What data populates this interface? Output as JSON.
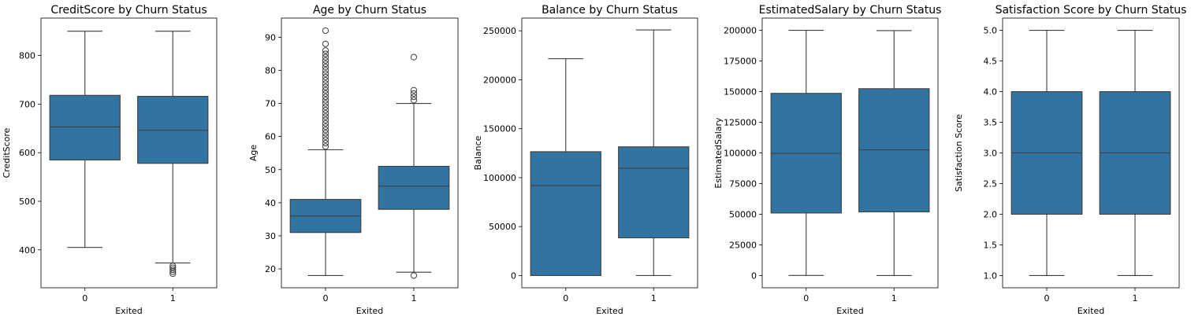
{
  "figure": {
    "background": "#ffffff",
    "box_color": "#3274a1",
    "line_color": "#3f3f3f"
  },
  "chart_data": [
    {
      "type": "box",
      "title": "CreditScore by Churn Status",
      "xlabel": "Exited",
      "ylabel": "CreditScore",
      "categories": [
        "0",
        "1"
      ],
      "ylim": [
        322,
        877
      ],
      "yticks": [
        400,
        500,
        600,
        700,
        800
      ],
      "ytick_labels": [
        "400",
        "500",
        "600",
        "700",
        "800"
      ],
      "boxes": [
        {
          "category": "0",
          "whisker_low": 405,
          "q1": 585,
          "median": 653,
          "q3": 718,
          "whisker_high": 850,
          "outliers": []
        },
        {
          "category": "1",
          "whisker_low": 373,
          "q1": 578,
          "median": 646,
          "q3": 716,
          "whisker_high": 850,
          "outliers": [
            367,
            363,
            359,
            355,
            351
          ]
        }
      ]
    },
    {
      "type": "box",
      "title": "Age by Churn Status",
      "xlabel": "Exited",
      "ylabel": "Age",
      "categories": [
        "0",
        "1"
      ],
      "ylim": [
        14.3,
        95.8
      ],
      "yticks": [
        20,
        30,
        40,
        50,
        60,
        70,
        80,
        90
      ],
      "ytick_labels": [
        "20",
        "30",
        "40",
        "50",
        "60",
        "70",
        "80",
        "90"
      ],
      "boxes": [
        {
          "category": "0",
          "whisker_low": 18,
          "q1": 31,
          "median": 36,
          "q3": 41,
          "whisker_high": 56,
          "outliers": [
            57,
            58,
            59,
            60,
            61,
            62,
            63,
            64,
            65,
            66,
            67,
            68,
            69,
            70,
            71,
            72,
            73,
            74,
            75,
            76,
            77,
            78,
            79,
            80,
            81,
            82,
            83,
            84,
            85,
            86,
            88,
            92
          ]
        },
        {
          "category": "1",
          "whisker_low": 19,
          "q1": 38,
          "median": 45,
          "q3": 51,
          "whisker_high": 70,
          "outliers": [
            18,
            71,
            72,
            73,
            74,
            84
          ]
        }
      ]
    },
    {
      "type": "box",
      "title": "Balance by Churn Status",
      "xlabel": "Exited",
      "ylabel": "Balance",
      "categories": [
        "0",
        "1"
      ],
      "ylim": [
        -12500,
        263000
      ],
      "yticks": [
        0,
        50000,
        100000,
        150000,
        200000,
        250000
      ],
      "ytick_labels": [
        "0",
        "50000",
        "100000",
        "150000",
        "200000",
        "250000"
      ],
      "boxes": [
        {
          "category": "0",
          "whisker_low": 0,
          "q1": 0,
          "median": 92000,
          "q3": 126500,
          "whisker_high": 221500,
          "outliers": []
        },
        {
          "category": "1",
          "whisker_low": 0,
          "q1": 38500,
          "median": 109500,
          "q3": 131500,
          "whisker_high": 250900,
          "outliers": []
        }
      ]
    },
    {
      "type": "box",
      "title": "EstimatedSalary by Churn Status",
      "xlabel": "Exited",
      "ylabel": "EstimatedSalary",
      "categories": [
        "0",
        "1"
      ],
      "ylim": [
        -10000,
        210000
      ],
      "yticks": [
        0,
        25000,
        50000,
        75000,
        100000,
        125000,
        150000,
        175000,
        200000
      ],
      "ytick_labels": [
        "0",
        "25000",
        "50000",
        "75000",
        "100000",
        "125000",
        "150000",
        "175000",
        "200000"
      ],
      "boxes": [
        {
          "category": "0",
          "whisker_low": 90,
          "q1": 51000,
          "median": 99700,
          "q3": 148600,
          "whisker_high": 199990,
          "outliers": []
        },
        {
          "category": "1",
          "whisker_low": 10,
          "q1": 51900,
          "median": 102500,
          "q3": 152400,
          "whisker_high": 199800,
          "outliers": []
        }
      ]
    },
    {
      "type": "box",
      "title": "Satisfaction Score by Churn Status",
      "xlabel": "Exited",
      "ylabel": "Satisfaction Score",
      "categories": [
        "0",
        "1"
      ],
      "ylim": [
        0.8,
        5.2
      ],
      "yticks": [
        1.0,
        1.5,
        2.0,
        2.5,
        3.0,
        3.5,
        4.0,
        4.5,
        5.0
      ],
      "ytick_labels": [
        "1.0",
        "1.5",
        "2.0",
        "2.5",
        "3.0",
        "3.5",
        "4.0",
        "4.5",
        "5.0"
      ],
      "boxes": [
        {
          "category": "0",
          "whisker_low": 1.0,
          "q1": 2.0,
          "median": 3.0,
          "q3": 4.0,
          "whisker_high": 5.0,
          "outliers": []
        },
        {
          "category": "1",
          "whisker_low": 1.0,
          "q1": 2.0,
          "median": 3.0,
          "q3": 4.0,
          "whisker_high": 5.0,
          "outliers": []
        }
      ]
    }
  ]
}
